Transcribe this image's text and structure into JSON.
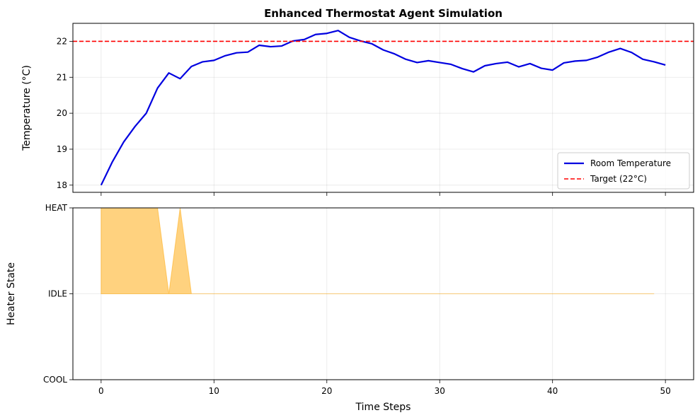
{
  "chart_data": [
    {
      "type": "line",
      "title": "Enhanced Thermostat Agent Simulation",
      "xlabel": "",
      "ylabel": "Temperature (°C)",
      "xlim": [
        -2.5,
        52.5
      ],
      "ylim": [
        17.8,
        22.5
      ],
      "xticks": [
        0,
        10,
        20,
        30,
        40,
        50
      ],
      "yticks": [
        18,
        19,
        20,
        21,
        22
      ],
      "ytick_labels": [
        "18",
        "19",
        "20",
        "21",
        "22"
      ],
      "grid": true,
      "legend_position": "lower-right",
      "series": [
        {
          "name": "Room Temperature",
          "color": "#0000e0",
          "style": "solid",
          "x": [
            0,
            1,
            2,
            3,
            4,
            5,
            6,
            7,
            8,
            9,
            10,
            11,
            12,
            13,
            14,
            15,
            16,
            17,
            18,
            19,
            20,
            21,
            22,
            23,
            24,
            25,
            26,
            27,
            28,
            29,
            30,
            31,
            32,
            33,
            34,
            35,
            36,
            37,
            38,
            39,
            40,
            41,
            42,
            43,
            44,
            45,
            46,
            47,
            48,
            49,
            50
          ],
          "values": [
            18.0,
            18.65,
            19.2,
            19.63,
            20.0,
            20.7,
            21.12,
            20.96,
            21.3,
            21.43,
            21.47,
            21.6,
            21.68,
            21.7,
            21.89,
            21.85,
            21.87,
            22.01,
            22.05,
            22.19,
            22.22,
            22.3,
            22.11,
            22.01,
            21.93,
            21.76,
            21.65,
            21.5,
            21.41,
            21.46,
            21.41,
            21.36,
            21.24,
            21.15,
            21.32,
            21.38,
            21.42,
            21.29,
            21.38,
            21.25,
            21.2,
            21.4,
            21.45,
            21.47,
            21.56,
            21.7,
            21.8,
            21.69,
            21.5,
            21.43,
            21.34
          ]
        },
        {
          "name": "Target (22°C)",
          "color": "#ff0000",
          "style": "dashed",
          "y": 22
        }
      ]
    },
    {
      "type": "area",
      "title": "",
      "xlabel": "Time Steps",
      "ylabel": "Heater State",
      "xlim": [
        -2.5,
        52.5
      ],
      "ylim": [
        -1,
        1
      ],
      "xticks": [
        0,
        10,
        20,
        30,
        40,
        50
      ],
      "xtick_labels": [
        "0",
        "10",
        "20",
        "30",
        "40",
        "50"
      ],
      "yticks": [
        -1,
        0,
        1
      ],
      "ytick_labels": [
        "COOL",
        "IDLE",
        "HEAT"
      ],
      "grid": true,
      "series": [
        {
          "name": "Heater State",
          "color": "#ffa500",
          "x": [
            0,
            1,
            2,
            3,
            4,
            5,
            6,
            7,
            8,
            9,
            10,
            11,
            12,
            13,
            14,
            15,
            16,
            17,
            18,
            19,
            20,
            21,
            22,
            23,
            24,
            25,
            26,
            27,
            28,
            29,
            30,
            31,
            32,
            33,
            34,
            35,
            36,
            37,
            38,
            39,
            40,
            41,
            42,
            43,
            44,
            45,
            46,
            47,
            48,
            49
          ],
          "values": [
            1,
            1,
            1,
            1,
            1,
            1,
            0,
            1,
            0,
            0,
            0,
            0,
            0,
            0,
            0,
            0,
            0,
            0,
            0,
            0,
            0,
            0,
            0,
            0,
            0,
            0,
            0,
            0,
            0,
            0,
            0,
            0,
            0,
            0,
            0,
            0,
            0,
            0,
            0,
            0,
            0,
            0,
            0,
            0,
            0,
            0,
            0,
            0,
            0,
            0
          ]
        }
      ]
    }
  ]
}
